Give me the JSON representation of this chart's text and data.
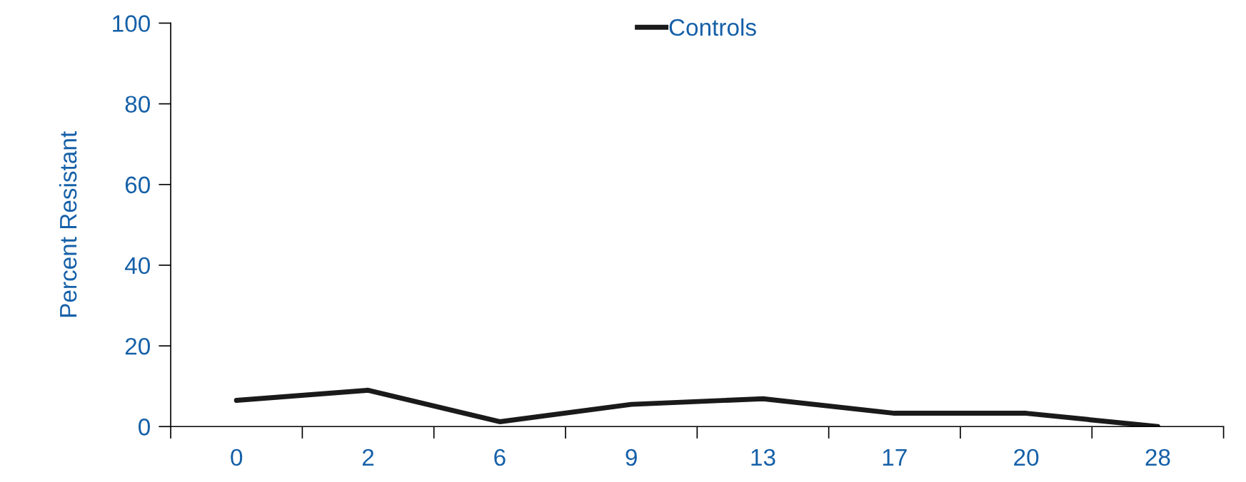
{
  "chart_data": {
    "type": "line",
    "ylabel": "Percent Resistant",
    "categories": [
      "0",
      "2",
      "6",
      "9",
      "13",
      "17",
      "20",
      "28"
    ],
    "series": [
      {
        "name": "Controls",
        "color": "#1a1a1a",
        "values": [
          6.5,
          9,
          1.2,
          5.5,
          6.9,
          3.3,
          3.3,
          0
        ]
      }
    ],
    "ylim": [
      0,
      100
    ],
    "yticks": [
      0,
      20,
      40,
      60,
      80,
      100
    ],
    "grid": false,
    "legend": "top",
    "marker": "none",
    "line_style": "solid"
  }
}
